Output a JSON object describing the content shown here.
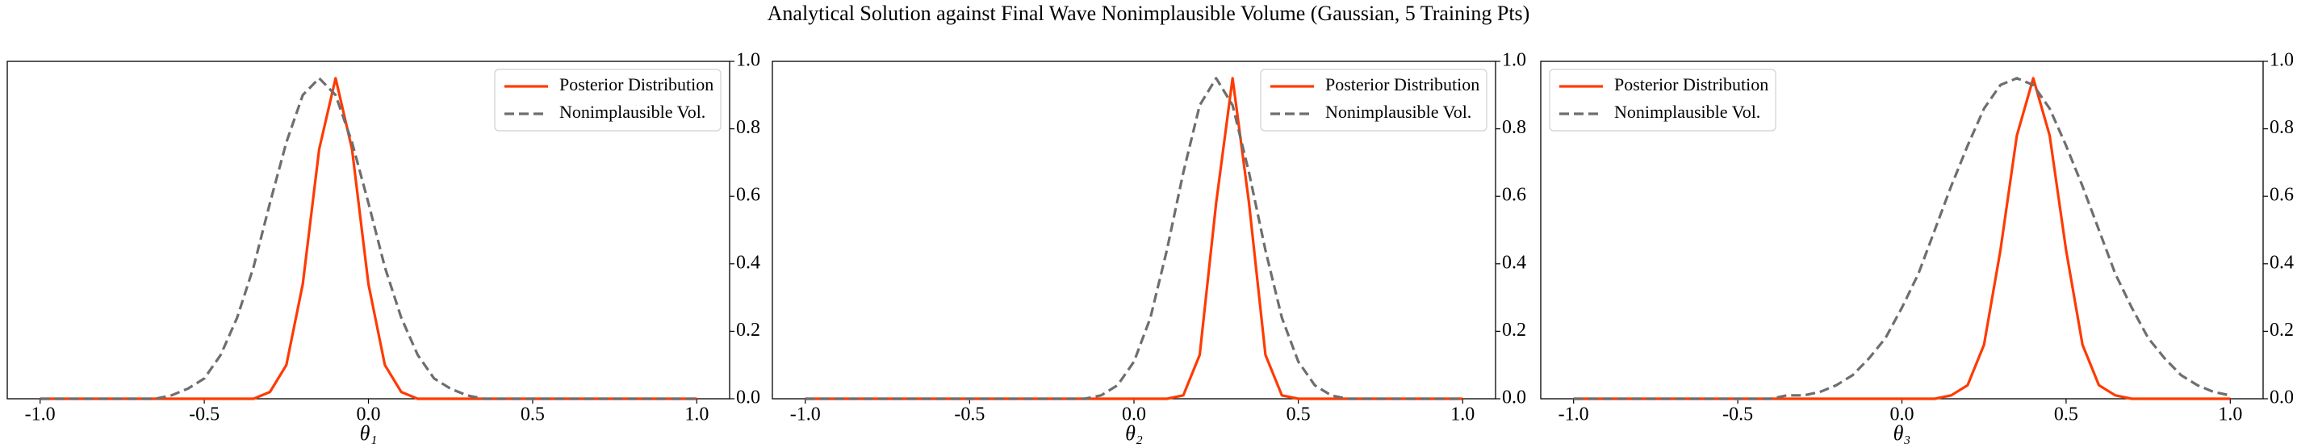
{
  "title": "Analytical Solution against Final Wave Nonimplausible Volume (Gaussian, 5 Training Pts)",
  "chart_data": [
    {
      "type": "line",
      "xlabel": "θ₁",
      "legend": "upper right",
      "x": [
        -1.0,
        -0.95,
        -0.9,
        -0.85,
        -0.8,
        -0.75,
        -0.7,
        -0.65,
        -0.6,
        -0.55,
        -0.5,
        -0.45,
        -0.4,
        -0.35,
        -0.3,
        -0.25,
        -0.2,
        -0.15,
        -0.1,
        -0.05,
        0.0,
        0.05,
        0.1,
        0.15,
        0.2,
        0.25,
        0.3,
        0.35,
        0.4,
        0.45,
        0.5,
        0.55,
        0.6,
        0.65,
        0.7,
        0.75,
        0.8,
        0.85,
        0.9,
        0.95,
        1.0
      ],
      "series": [
        {
          "name": "Posterior Distribution",
          "color": "#ff3a00",
          "dashed": false,
          "values": [
            0,
            0,
            0,
            0,
            0,
            0,
            0,
            0,
            0,
            0,
            0,
            0,
            0,
            0,
            0.02,
            0.1,
            0.34,
            0.74,
            0.95,
            0.74,
            0.34,
            0.1,
            0.02,
            0,
            0,
            0,
            0,
            0,
            0,
            0,
            0,
            0,
            0,
            0,
            0,
            0,
            0,
            0,
            0,
            0,
            0
          ]
        },
        {
          "name": "Nonimplausible Vol.",
          "color": "#6e6e6e",
          "dashed": true,
          "values": [
            0,
            0,
            0,
            0,
            0,
            0,
            0,
            0,
            0.01,
            0.03,
            0.06,
            0.13,
            0.24,
            0.39,
            0.58,
            0.76,
            0.9,
            0.95,
            0.9,
            0.76,
            0.58,
            0.39,
            0.24,
            0.13,
            0.06,
            0.03,
            0.01,
            0,
            0,
            0,
            0,
            0,
            0,
            0,
            0,
            0,
            0,
            0,
            0,
            0,
            0
          ]
        }
      ],
      "xlim": [
        -1.1,
        1.1
      ],
      "ylim": [
        0,
        1
      ],
      "xticks": [
        {
          "value": -1.0,
          "label": "-1.0"
        },
        -0.5,
        {
          "value": 0,
          "label": "0.0"
        },
        0.5,
        {
          "value": 1.0,
          "label": "1.0"
        }
      ],
      "yticks": [
        {
          "value": 0,
          "label": "0.0"
        },
        0.2,
        0.4,
        0.6,
        0.8,
        {
          "value": 1.0,
          "label": "1.0"
        }
      ]
    },
    {
      "type": "line",
      "xlabel": "θ₂",
      "legend": "upper right",
      "x": [
        -1.0,
        -0.95,
        -0.9,
        -0.85,
        -0.8,
        -0.75,
        -0.7,
        -0.65,
        -0.6,
        -0.55,
        -0.5,
        -0.45,
        -0.4,
        -0.35,
        -0.3,
        -0.25,
        -0.2,
        -0.15,
        -0.1,
        -0.05,
        0.0,
        0.05,
        0.1,
        0.15,
        0.2,
        0.25,
        0.3,
        0.35,
        0.4,
        0.45,
        0.5,
        0.55,
        0.6,
        0.65,
        0.7,
        0.75,
        0.8,
        0.85,
        0.9,
        0.95,
        1.0
      ],
      "series": [
        {
          "name": "Posterior Distribution",
          "color": "#ff3a00",
          "dashed": false,
          "values": [
            0,
            0,
            0,
            0,
            0,
            0,
            0,
            0,
            0,
            0,
            0,
            0,
            0,
            0,
            0,
            0,
            0,
            0,
            0,
            0,
            0,
            0,
            0,
            0.01,
            0.13,
            0.58,
            0.95,
            0.58,
            0.13,
            0.01,
            0,
            0,
            0,
            0,
            0,
            0,
            0,
            0,
            0,
            0,
            0
          ]
        },
        {
          "name": "Nonimplausible Vol.",
          "color": "#6e6e6e",
          "dashed": true,
          "values": [
            0,
            0,
            0,
            0,
            0,
            0,
            0,
            0,
            0,
            0,
            0,
            0,
            0,
            0,
            0,
            0,
            0,
            0,
            0.01,
            0.04,
            0.11,
            0.24,
            0.44,
            0.67,
            0.87,
            0.95,
            0.87,
            0.67,
            0.44,
            0.24,
            0.11,
            0.04,
            0.01,
            0,
            0,
            0,
            0,
            0,
            0,
            0,
            0
          ]
        }
      ],
      "xlim": [
        -1.1,
        1.1
      ],
      "ylim": [
        0,
        1
      ],
      "xticks": [
        {
          "value": -1.0,
          "label": "-1.0"
        },
        -0.5,
        {
          "value": 0,
          "label": "0.0"
        },
        0.5,
        {
          "value": 1.0,
          "label": "1.0"
        }
      ],
      "yticks": [
        {
          "value": 0,
          "label": "0.0"
        },
        0.2,
        0.4,
        0.6,
        0.8,
        {
          "value": 1.0,
          "label": "1.0"
        }
      ]
    },
    {
      "type": "line",
      "xlabel": "θ₃",
      "legend": "upper left",
      "x": [
        -1.0,
        -0.95,
        -0.9,
        -0.85,
        -0.8,
        -0.75,
        -0.7,
        -0.65,
        -0.6,
        -0.55,
        -0.5,
        -0.45,
        -0.4,
        -0.35,
        -0.3,
        -0.25,
        -0.2,
        -0.15,
        -0.1,
        -0.05,
        0.0,
        0.05,
        0.1,
        0.15,
        0.2,
        0.25,
        0.3,
        0.35,
        0.4,
        0.45,
        0.5,
        0.55,
        0.6,
        0.65,
        0.7,
        0.75,
        0.8,
        0.85,
        0.9,
        0.95,
        1.0
      ],
      "series": [
        {
          "name": "Posterior Distribution",
          "color": "#ff3a00",
          "dashed": false,
          "values": [
            0,
            0,
            0,
            0,
            0,
            0,
            0,
            0,
            0,
            0,
            0,
            0,
            0,
            0,
            0,
            0,
            0,
            0,
            0,
            0,
            0,
            0,
            0,
            0.01,
            0.04,
            0.16,
            0.44,
            0.78,
            0.95,
            0.78,
            0.44,
            0.16,
            0.04,
            0.01,
            0,
            0,
            0,
            0,
            0,
            0,
            0
          ]
        },
        {
          "name": "Nonimplausible Vol.",
          "color": "#6e6e6e",
          "dashed": true,
          "values": [
            0,
            0,
            0,
            0,
            0,
            0,
            0,
            0,
            0,
            0,
            0,
            0,
            0,
            0.01,
            0.01,
            0.02,
            0.04,
            0.07,
            0.12,
            0.18,
            0.27,
            0.37,
            0.5,
            0.63,
            0.75,
            0.86,
            0.93,
            0.95,
            0.93,
            0.86,
            0.75,
            0.63,
            0.5,
            0.37,
            0.27,
            0.18,
            0.12,
            0.07,
            0.04,
            0.02,
            0.01
          ]
        }
      ],
      "xlim": [
        -1.1,
        1.1
      ],
      "ylim": [
        0,
        1
      ],
      "xticks": [
        {
          "value": -1.0,
          "label": "-1.0"
        },
        -0.5,
        {
          "value": 0,
          "label": "0.0"
        },
        0.5,
        {
          "value": 1.0,
          "label": "1.0"
        }
      ],
      "yticks": [
        {
          "value": 0,
          "label": "0.0"
        },
        0.2,
        0.4,
        0.6,
        0.8,
        {
          "value": 1.0,
          "label": "1.0"
        }
      ]
    }
  ]
}
